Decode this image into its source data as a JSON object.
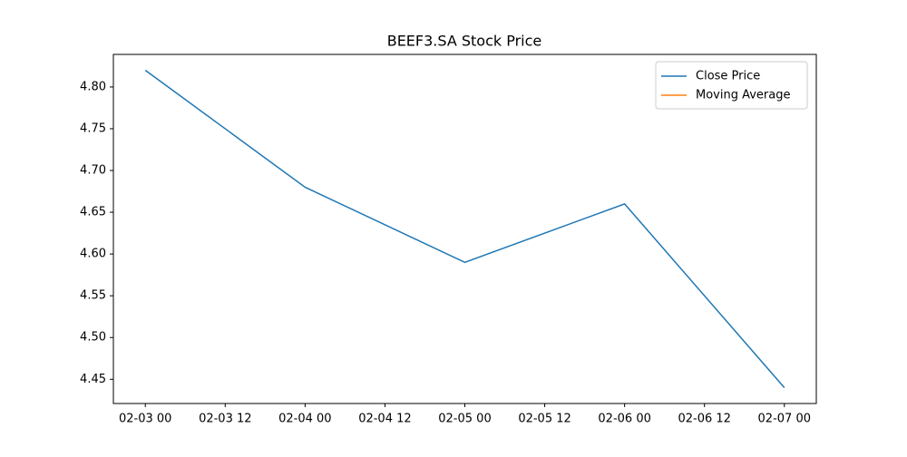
{
  "chart_data": {
    "type": "line",
    "title": "BEEF3.SA Stock Price",
    "x": [
      "02-03 00",
      "02-04 00",
      "02-05 00",
      "02-06 00",
      "02-07 00"
    ],
    "xticks": [
      "02-03 00",
      "02-03 12",
      "02-04 00",
      "02-04 12",
      "02-05 00",
      "02-05 12",
      "02-06 00",
      "02-06 12",
      "02-07 00"
    ],
    "series": [
      {
        "name": "Close Price",
        "color": "#1f77b4",
        "values": [
          4.82,
          4.68,
          4.59,
          4.66,
          4.44
        ]
      },
      {
        "name": "Moving Average",
        "color": "#ff7f0e",
        "values": [
          null,
          null,
          null,
          null,
          null
        ]
      }
    ],
    "ylim": [
      4.421,
      4.839
    ],
    "yticks": [
      {
        "value": 4.45,
        "label": "4.45"
      },
      {
        "value": 4.5,
        "label": "4.50"
      },
      {
        "value": 4.55,
        "label": "4.55"
      },
      {
        "value": 4.6,
        "label": "4.60"
      },
      {
        "value": 4.65,
        "label": "4.65"
      },
      {
        "value": 4.7,
        "label": "4.70"
      },
      {
        "value": 4.75,
        "label": "4.75"
      },
      {
        "value": 4.8,
        "label": "4.80"
      }
    ],
    "grid": false,
    "legend": "upper right"
  }
}
